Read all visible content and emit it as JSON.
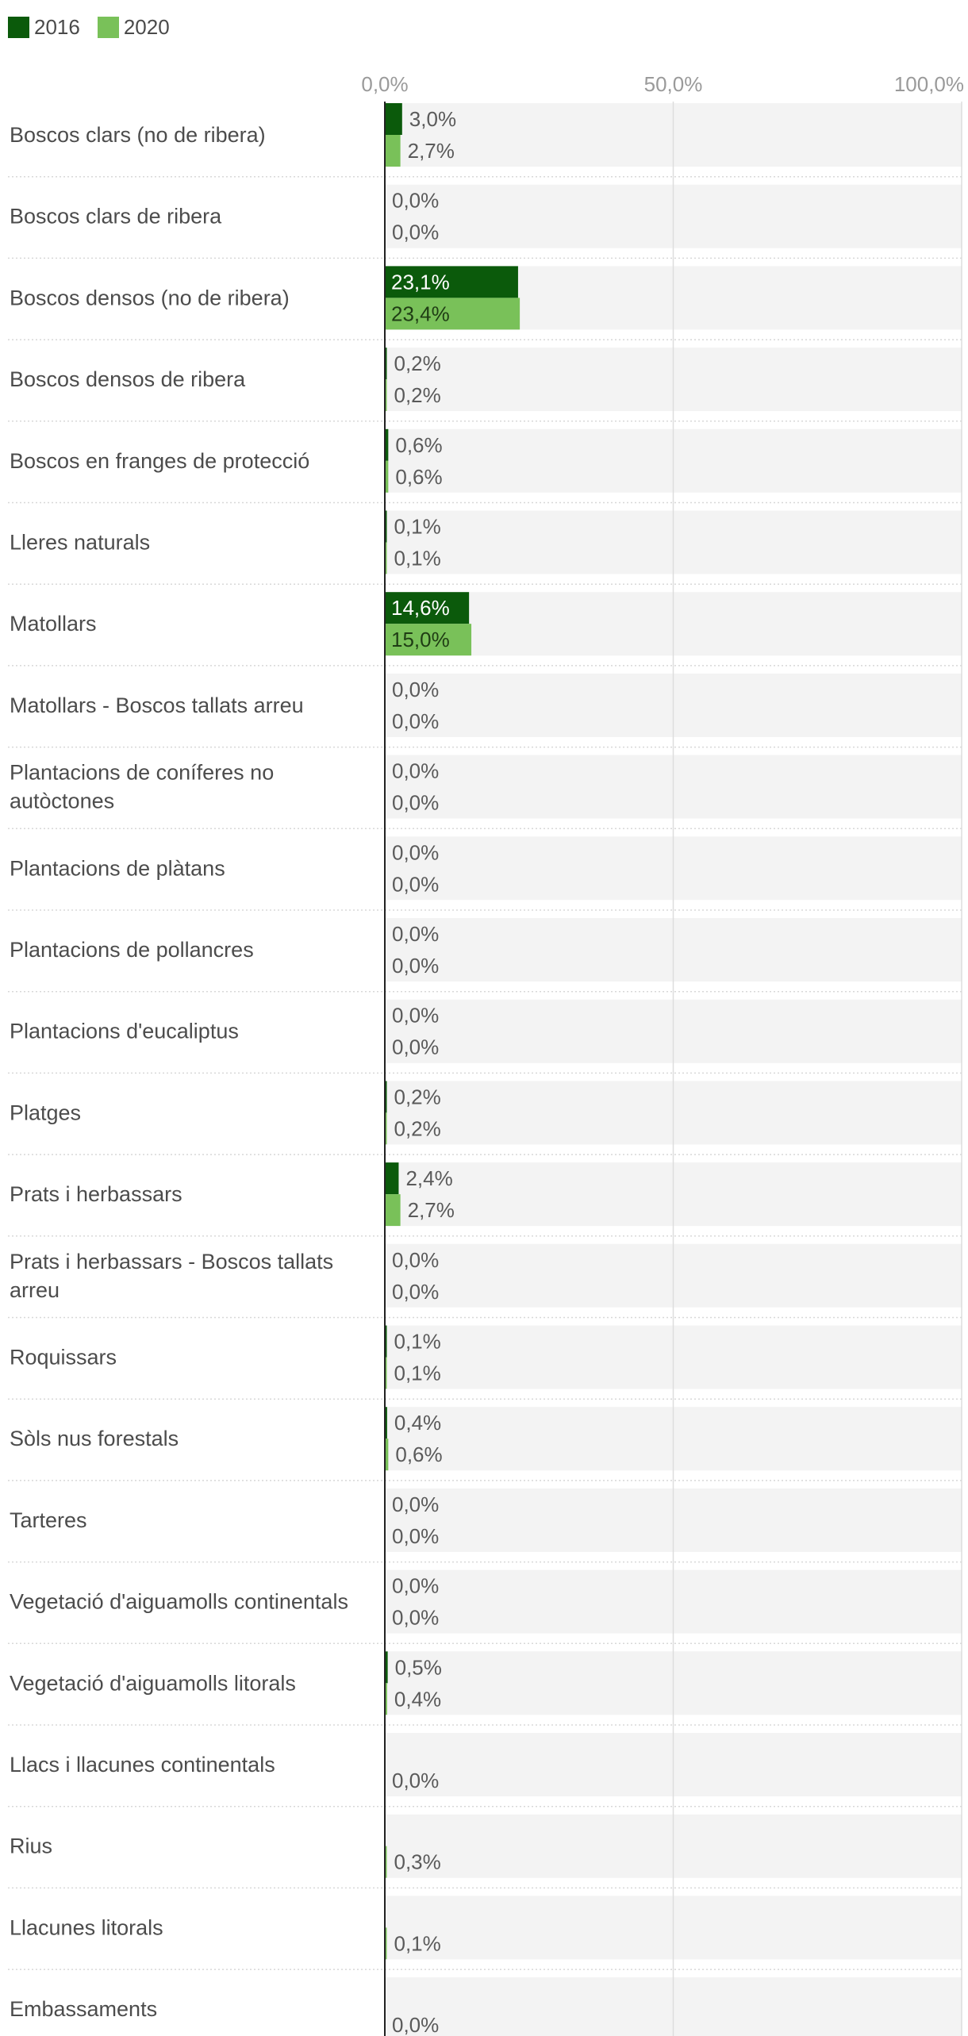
{
  "chart_data": {
    "type": "bar",
    "orientation": "horizontal",
    "legend": "top-left",
    "xlim": [
      0,
      100
    ],
    "x_ticks": [
      {
        "value": 0,
        "label": "0,0%"
      },
      {
        "value": 50,
        "label": "50,0%"
      },
      {
        "value": 100,
        "label": "100,0%"
      }
    ],
    "grid": true,
    "categories": [
      [
        "Boscos clars (no de ribera)"
      ],
      [
        "Boscos clars de ribera"
      ],
      [
        "Boscos densos (no de ribera)"
      ],
      [
        "Boscos densos de ribera"
      ],
      [
        "Boscos en franges de protecció"
      ],
      [
        "Lleres naturals"
      ],
      [
        "Matollars"
      ],
      [
        "Matollars - Boscos tallats arreu"
      ],
      [
        "Plantacions de coníferes no",
        "autòctones"
      ],
      [
        "Plantacions de plàtans"
      ],
      [
        "Plantacions de pollancres"
      ],
      [
        "Plantacions d'eucaliptus"
      ],
      [
        "Platges"
      ],
      [
        "Prats i herbassars"
      ],
      [
        "Prats i herbassars - Boscos tallats",
        "arreu"
      ],
      [
        "Roquissars"
      ],
      [
        "Sòls nus forestals"
      ],
      [
        "Tarteres"
      ],
      [
        "Vegetació d'aiguamolls continentals"
      ],
      [
        "Vegetació d'aiguamolls litorals"
      ],
      [
        "Llacs i llacunes continentals"
      ],
      [
        "Rius"
      ],
      [
        "Llacunes litorals"
      ],
      [
        "Embassaments"
      ]
    ],
    "series": [
      {
        "name": "2016",
        "color": "#0b5a0b",
        "values": [
          3.0,
          0.0,
          23.1,
          0.2,
          0.6,
          0.1,
          14.6,
          0.0,
          0.0,
          0.0,
          0.0,
          0.0,
          0.2,
          2.4,
          0.0,
          0.1,
          0.4,
          0.0,
          0.0,
          0.5,
          null,
          null,
          null,
          null
        ],
        "labels": [
          "3,0%",
          "0,0%",
          "23,1%",
          "0,2%",
          "0,6%",
          "0,1%",
          "14,6%",
          "0,0%",
          "0,0%",
          "0,0%",
          "0,0%",
          "0,0%",
          "0,2%",
          "2,4%",
          "0,0%",
          "0,1%",
          "0,4%",
          "0,0%",
          "0,0%",
          "0,5%",
          "",
          "",
          "",
          ""
        ]
      },
      {
        "name": "2020",
        "color": "#79c159",
        "values": [
          2.7,
          0.0,
          23.4,
          0.2,
          0.6,
          0.1,
          15.0,
          0.0,
          0.0,
          0.0,
          0.0,
          0.0,
          0.2,
          2.7,
          0.0,
          0.1,
          0.6,
          0.0,
          0.0,
          0.4,
          0.0,
          0.3,
          0.1,
          0.0
        ],
        "labels": [
          "2,7%",
          "0,0%",
          "23,4%",
          "0,2%",
          "0,6%",
          "0,1%",
          "15,0%",
          "0,0%",
          "0,0%",
          "0,0%",
          "0,0%",
          "0,0%",
          "0,2%",
          "2,7%",
          "0,0%",
          "0,1%",
          "0,6%",
          "0,0%",
          "0,0%",
          "0,4%",
          "0,0%",
          "0,3%",
          "0,1%",
          "0,0%"
        ]
      }
    ]
  },
  "colors": {
    "row_background": "#f3f3f3",
    "grid_line": "#dddddd",
    "axis_line": "#222222",
    "separator": "#d8d8d8",
    "label_text": "#4c4c4c",
    "tick_text": "#9a9a9a",
    "value_text_outside": "#5a5a5a",
    "value_text_inside_dark": "#ffffff",
    "value_text_inside_light": "#1f3d14"
  }
}
